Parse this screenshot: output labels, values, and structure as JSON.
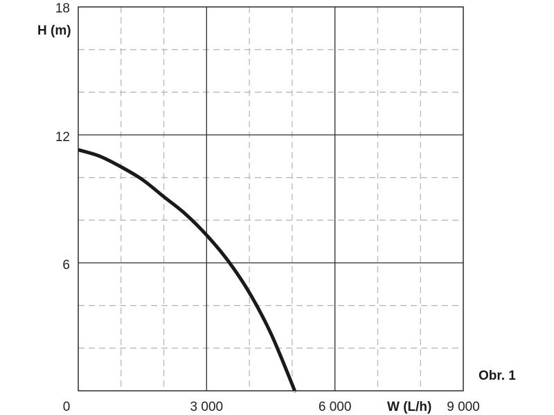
{
  "chart_data": {
    "type": "line",
    "xlabel": "W (L/h)",
    "ylabel": "H (m)",
    "xlim": [
      0,
      9000
    ],
    "ylim": [
      0,
      18
    ],
    "x_ticks": [
      0,
      3000,
      6000,
      9000
    ],
    "x_tick_labels": [
      "0",
      "3 000",
      "6 000",
      "9 000"
    ],
    "y_ticks": [
      6,
      12,
      18
    ],
    "y_tick_labels": [
      "6",
      "12",
      "18"
    ],
    "major_grid": true,
    "minor_grid": "dashed",
    "minor_x_step": 1000,
    "minor_y_step": 2,
    "figure_label": "Obr. 1",
    "series": [
      {
        "x": [
          0,
          500,
          1000,
          1500,
          2000,
          2500,
          3000,
          3500,
          4000,
          4500,
          5000,
          5050
        ],
        "y": [
          11.3,
          11.0,
          10.5,
          9.9,
          9.1,
          8.3,
          7.3,
          6.1,
          4.6,
          2.7,
          0.3,
          0
        ],
        "color": "#1a1a1a"
      }
    ]
  }
}
